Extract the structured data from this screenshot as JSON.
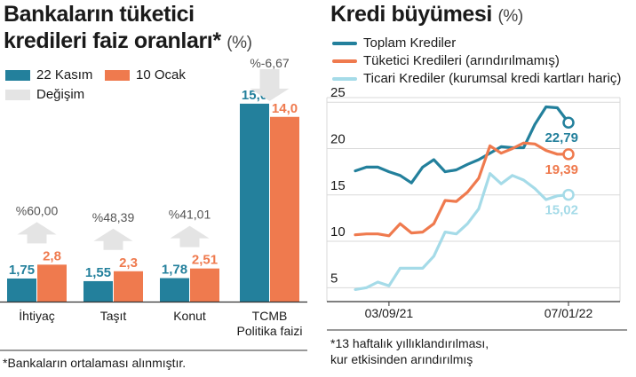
{
  "colors": {
    "blue": "#23809c",
    "orange": "#ef7a4e",
    "light_blue": "#a5dbe8",
    "change_gray": "#e4e4e4",
    "grid": "#d9d9d9",
    "axis": "#333333"
  },
  "left": {
    "title_line1": "Bankaların tüketici",
    "title_line2": "kredileri faiz oranları*",
    "title_unit": "(%)",
    "legend": [
      {
        "label": "22 Kasım",
        "color": "#23809c"
      },
      {
        "label": "10 Ocak",
        "color": "#ef7a4e"
      },
      {
        "label": "Değişim",
        "color": "#e4e4e4"
      }
    ],
    "footnote": "*Bankaların ortalaması alınmıştır."
  },
  "right": {
    "title": "Kredi büyümesi",
    "title_unit": "(%)",
    "legend": [
      {
        "label": "Toplam Krediler",
        "color": "#23809c"
      },
      {
        "label": "Tüketici Kredileri (arındırılmamış)",
        "color": "#ef7a4e"
      },
      {
        "label": "Ticari Krediler (kurumsal kredi kartları hariç)",
        "color": "#a5dbe8"
      }
    ],
    "footnote_line1": "*13 haftalık yıllıklandırılması,",
    "footnote_line2": "kur etkisinden arındırılmış"
  },
  "chart_data": [
    {
      "type": "bar",
      "categories": [
        [
          "İhtiyaç"
        ],
        [
          "Taşıt"
        ],
        [
          "Konut"
        ],
        [
          "TCMB",
          "Politika faizi"
        ]
      ],
      "series": [
        {
          "name": "22 Kasım",
          "values": [
            1.75,
            1.55,
            1.78,
            15.0
          ],
          "labels": [
            "1,75",
            "1,55",
            "1,78",
            "15,0"
          ]
        },
        {
          "name": "10 Ocak",
          "values": [
            2.8,
            2.3,
            2.51,
            14.0
          ],
          "labels": [
            "2,8",
            "2,3",
            "2,51",
            "14,0"
          ]
        }
      ],
      "changes": [
        {
          "label": "%60,00",
          "direction": "up"
        },
        {
          "label": "%48,39",
          "direction": "up"
        },
        {
          "label": "%41,01",
          "direction": "up"
        },
        {
          "label": "%-6,67",
          "direction": "down"
        }
      ],
      "ylim": [
        0,
        16
      ]
    },
    {
      "type": "line",
      "x_tick_labels": [
        "03/09/21",
        "07/01/22"
      ],
      "y_ticks": [
        5,
        10,
        15,
        20,
        25
      ],
      "ylim": [
        3.5,
        25.5
      ],
      "grid": true,
      "series": [
        {
          "name": "Toplam Krediler",
          "color": "#23809c",
          "end_label": "22,79",
          "values": [
            17.6,
            18.0,
            18.0,
            17.5,
            17.1,
            16.3,
            18.0,
            18.8,
            17.5,
            17.7,
            18.3,
            18.8,
            19.5,
            20.2,
            20.1,
            20.1,
            22.6,
            24.5,
            24.4,
            22.8
          ]
        },
        {
          "name": "Tüketici Kredileri (arındırılmamış)",
          "color": "#ef7a4e",
          "end_label": "19,39",
          "values": [
            10.7,
            10.8,
            10.8,
            10.6,
            11.9,
            10.9,
            11.0,
            11.9,
            14.4,
            14.3,
            15.3,
            16.8,
            20.3,
            19.5,
            20.0,
            20.6,
            20.5,
            19.8,
            19.4,
            19.39
          ]
        },
        {
          "name": "Ticari Krediler (kurumsal kredi kartları hariç)",
          "color": "#a5dbe8",
          "end_label": "15,02",
          "values": [
            4.8,
            5.0,
            5.6,
            5.2,
            7.1,
            7.1,
            7.1,
            8.4,
            11.0,
            10.8,
            11.9,
            13.5,
            17.3,
            16.2,
            17.1,
            16.6,
            15.7,
            14.5,
            14.9,
            15.02
          ]
        }
      ]
    }
  ]
}
